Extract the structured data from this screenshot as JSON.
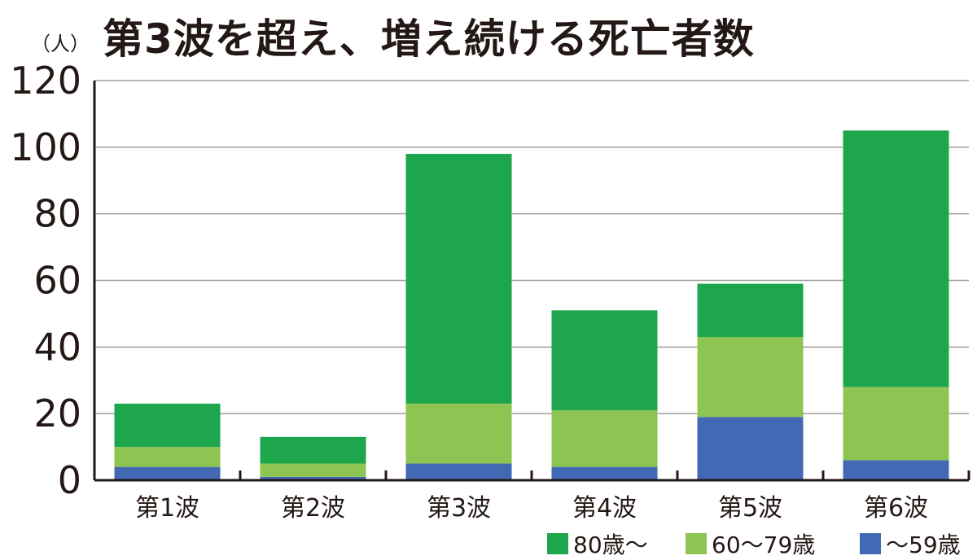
{
  "chart_data": {
    "type": "bar",
    "stacked": true,
    "title": "第3波を超え、増え続ける死亡者数",
    "ylabel": "（人）",
    "xlabel": "",
    "ylim": [
      0,
      120
    ],
    "yticks": [
      0,
      20,
      40,
      60,
      80,
      100,
      120
    ],
    "grid": true,
    "legend_position": "bottom-right",
    "categories": [
      "第1波",
      "第2波",
      "第3波",
      "第4波",
      "第5波",
      "第6波"
    ],
    "series": [
      {
        "name": "～59歳",
        "color": "#4169b4",
        "values": [
          4,
          1,
          5,
          4,
          19,
          6
        ]
      },
      {
        "name": "60～79歳",
        "color": "#8dc452",
        "values": [
          6,
          4,
          18,
          17,
          24,
          22
        ]
      },
      {
        "name": "80歳～",
        "color": "#1ea64c",
        "values": [
          13,
          8,
          75,
          30,
          16,
          77
        ]
      }
    ],
    "legend_order": [
      2,
      1,
      0
    ]
  }
}
